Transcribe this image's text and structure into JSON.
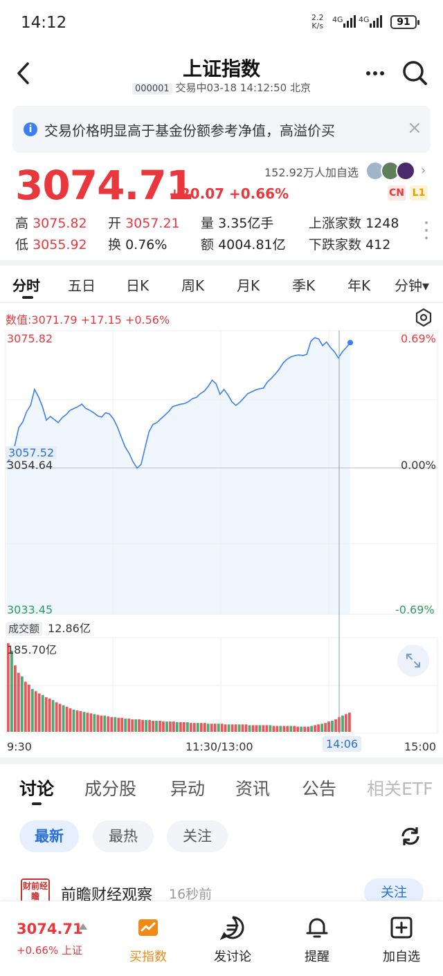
{
  "status_bar": {
    "time": "14:12",
    "net_speed": "2.2",
    "net_unit": "K/s",
    "sig1": "4G",
    "sig2": "4G",
    "battery": "91"
  },
  "header": {
    "title": "上证指数",
    "code": "000001",
    "status": "交易中03-18 14:12:50 北京"
  },
  "notice": {
    "text": "交易价格明显高于基金份额参考净值，高溢价买",
    "close": "×"
  },
  "quote": {
    "price": "3074.71",
    "change": "+20.07 +0.66%",
    "followers": "152.92万人加自选",
    "tags": [
      "CN",
      "L1"
    ]
  },
  "stats": {
    "high_label": "高",
    "high": "3075.82",
    "open_label": "开",
    "open": "3057.21",
    "volume_label": "量",
    "volume": "3.35亿手",
    "rise_label": "上涨家数",
    "rise": "1248",
    "low_label": "低",
    "low": "3055.92",
    "turnover_label": "换",
    "turnover": "0.76%",
    "amount_label": "额",
    "amount": "4004.81亿",
    "fall_label": "下跌家数",
    "fall": "412"
  },
  "chart_tabs": [
    {
      "label": "分时",
      "active": true
    },
    {
      "label": "五日"
    },
    {
      "label": "日K"
    },
    {
      "label": "周K"
    },
    {
      "label": "月K"
    },
    {
      "label": "季K"
    },
    {
      "label": "年K"
    },
    {
      "label": "分钟▾"
    }
  ],
  "chart_info": "数值:3071.79 +17.15 +0.56%",
  "chart_data": {
    "type": "line",
    "title": "",
    "x_ticks": [
      "9:30",
      "11:30/13:00",
      "15:00"
    ],
    "cursor_time": "14:06",
    "y_ticks_left": [
      "3075.82",
      "3054.64",
      "3033.45"
    ],
    "y_ticks_right": [
      "0.69%",
      "0.00%",
      "-0.69%"
    ],
    "ylim": [
      3033.45,
      3075.82
    ],
    "prev_close": 3054.64,
    "cursor_price_label": "3057.52",
    "series": [
      {
        "values": [
          3055.5,
          3056.3,
          3058.3,
          3061.2,
          3062.1,
          3063.8,
          3064.8,
          3067.4,
          3066.2,
          3064.6,
          3062.4,
          3063.0,
          3062.5,
          3062.0,
          3062.8,
          3063.3,
          3064.0,
          3064.3,
          3064.6,
          3065.0,
          3064.3,
          3064.0,
          3063.6,
          3063.1,
          3062.9,
          3063.6,
          3063.4,
          3062.6,
          3061.3,
          3059.6,
          3058.0,
          3057.0,
          3055.6,
          3054.6,
          3055.2,
          3057.9,
          3060.5,
          3061.7,
          3062.0,
          3062.6,
          3063.2,
          3063.8,
          3064.6,
          3064.8,
          3065.0,
          3065.1,
          3065.4,
          3065.9,
          3066.1,
          3066.7,
          3067.1,
          3067.9,
          3068.9,
          3068.3,
          3066.6,
          3067.4,
          3066.5,
          3065.4,
          3064.8,
          3065.3,
          3066.0,
          3066.7,
          3067.0,
          3067.3,
          3067.5,
          3067.6,
          3068.6,
          3069.2,
          3069.9,
          3070.7,
          3071.7,
          3072.3,
          3072.7,
          3072.9,
          3073.0,
          3072.9,
          3073.1,
          3075.2,
          3075.8,
          3075.6,
          3074.5,
          3075.1,
          3074.2,
          3073.5,
          3072.5,
          3073.5,
          3074.2,
          3075.0
        ]
      }
    ],
    "volume_label": "成交额",
    "volume_current": "12.86亿",
    "volume_max_label": "185.70亿",
    "volume": [
      120,
      110,
      90,
      80,
      75,
      68,
      64,
      58,
      55,
      52,
      50,
      47,
      45,
      43,
      40,
      38,
      36,
      34,
      32,
      30,
      29,
      28,
      27,
      26,
      25,
      24,
      23,
      22,
      22,
      21,
      20,
      20,
      19,
      19,
      18,
      18,
      17,
      17,
      17,
      16,
      16,
      16,
      15,
      15,
      15,
      14,
      14,
      14,
      14,
      13,
      13,
      13,
      13,
      12,
      12,
      12,
      12,
      12,
      11,
      11,
      11,
      11,
      11,
      10,
      10,
      10,
      10,
      10,
      10,
      10,
      9,
      9,
      9,
      9,
      9,
      9,
      9,
      8,
      8,
      8,
      8,
      8,
      8,
      8,
      7,
      7,
      7,
      7,
      8,
      9,
      10,
      11,
      12,
      14,
      15,
      17,
      20,
      22,
      24,
      26
    ]
  },
  "discussion_tabs": [
    {
      "label": "讨论",
      "active": true
    },
    {
      "label": "成分股"
    },
    {
      "label": "异动"
    },
    {
      "label": "资讯"
    },
    {
      "label": "公告"
    },
    {
      "label": "相关ETF"
    }
  ],
  "filters": [
    {
      "label": "最新",
      "active": true
    },
    {
      "label": "最热"
    },
    {
      "label": "关注"
    }
  ],
  "post": {
    "avatar_text": "财前经瞻",
    "author": "前瞻财经观察",
    "time": "16秒前",
    "follow": "关注"
  },
  "bottom": {
    "price": "3074.71",
    "change": "+0.66% 上证",
    "items": [
      {
        "label": "买指数",
        "icon": "buy-index-icon"
      },
      {
        "label": "发讨论",
        "icon": "chat-icon"
      },
      {
        "label": "提醒",
        "icon": "bell-icon"
      },
      {
        "label": "加自选",
        "icon": "add-square-icon"
      }
    ]
  },
  "colors": {
    "red": "#e8383d",
    "green": "#2a9d5c",
    "blue": "#2a6fd6",
    "line": "#3b7ff0",
    "fill": "#eaf2fc"
  }
}
